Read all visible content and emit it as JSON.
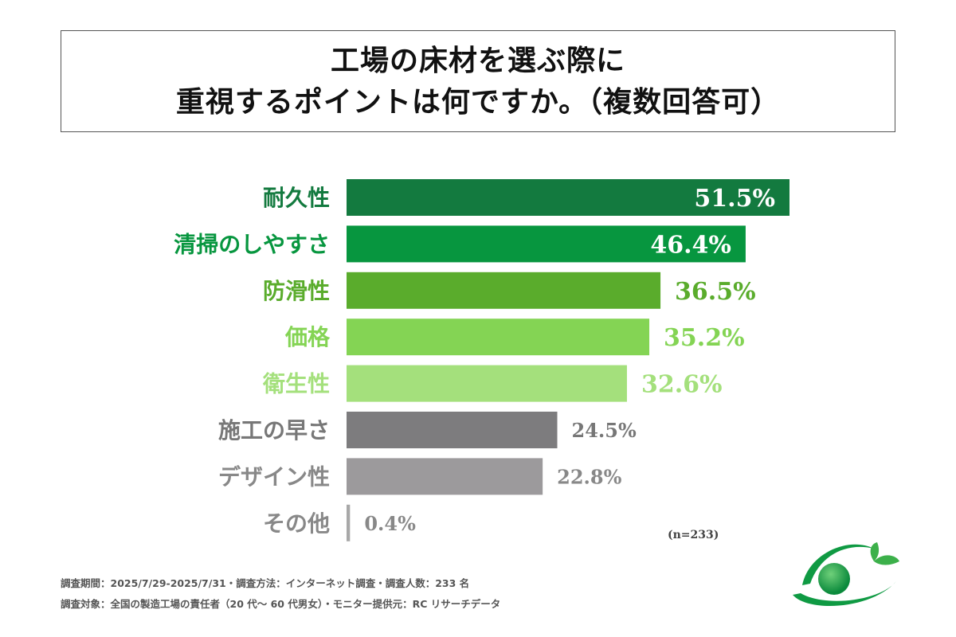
{
  "title": {
    "line1": "工場の床材を選ぶ際に",
    "line2": "重視するポイントは何ですか。（複数回答可）"
  },
  "chart_data": {
    "type": "bar",
    "orientation": "horizontal",
    "categories": [
      "耐久性",
      "清掃のしやすさ",
      "防滑性",
      "価格",
      "衛生性",
      "施工の早さ",
      "デザイン性",
      "その他"
    ],
    "values": [
      51.5,
      46.4,
      36.5,
      35.2,
      32.6,
      24.5,
      22.8,
      0.4
    ],
    "value_labels": [
      "51.5%",
      "46.4%",
      "36.5%",
      "35.2%",
      "32.6%",
      "24.5%",
      "22.8%",
      "0.4%"
    ],
    "bar_colors": [
      "#137a3f",
      "#07963f",
      "#5aac2c",
      "#84d454",
      "#a4e07c",
      "#7d7c7e",
      "#9c9a9c",
      "#a8a8a8"
    ],
    "label_colors": [
      "#137a3f",
      "#07963f",
      "#5aac2c",
      "#84d454",
      "#a4e07c",
      "#777777",
      "#888888",
      "#888888"
    ],
    "value_label_inside": [
      true,
      true,
      false,
      false,
      false,
      false,
      false,
      false
    ],
    "xlim": [
      0,
      51.5
    ],
    "grid": false,
    "legend": "none"
  },
  "sample_note": "(n=233)",
  "footer": {
    "line1": "調査期間：2025/7/29-2025/7/31・調査方法：インターネット調査・調査人数：233 名",
    "line2": "調査対象：全国の製造工場の責任者（20 代〜 60 代男女）・モニター提供元：RC リサーチデータ"
  },
  "logo": {
    "icon": "green-globe-leaf-logo",
    "colors": [
      "#0f9a43",
      "#3cb04a"
    ]
  }
}
